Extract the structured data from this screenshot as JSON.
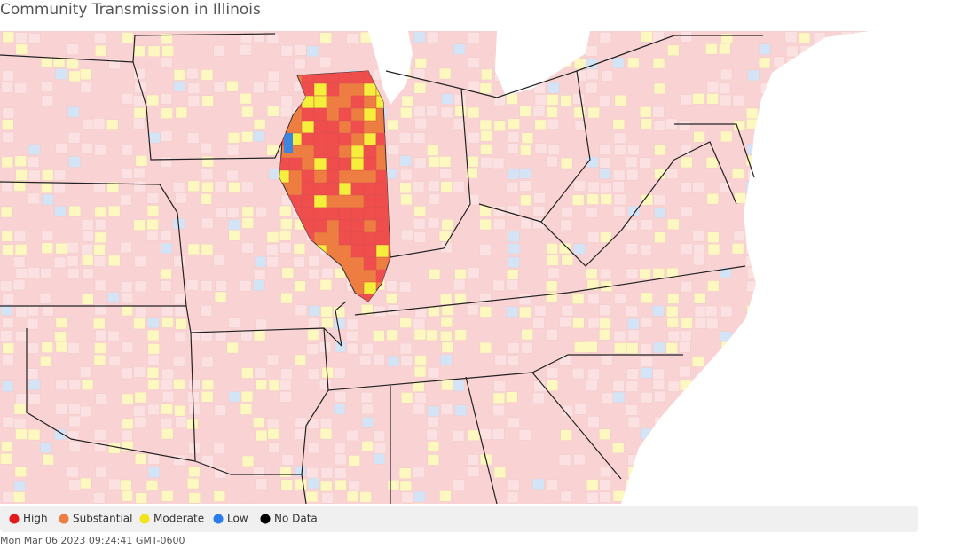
{
  "header": {
    "title": "Community Transmission in Illinois"
  },
  "legend": {
    "items": [
      {
        "label": "High",
        "color": "#e31a1c"
      },
      {
        "label": "Substantial",
        "color": "#ed7d41"
      },
      {
        "label": "Moderate",
        "color": "#f2e41b"
      },
      {
        "label": "Low",
        "color": "#2b7de9"
      },
      {
        "label": "No Data",
        "color": "#000000"
      }
    ]
  },
  "footer": {
    "timestamp": "Mon Mar 06 2023 09:24:41 GMT-0600"
  }
}
